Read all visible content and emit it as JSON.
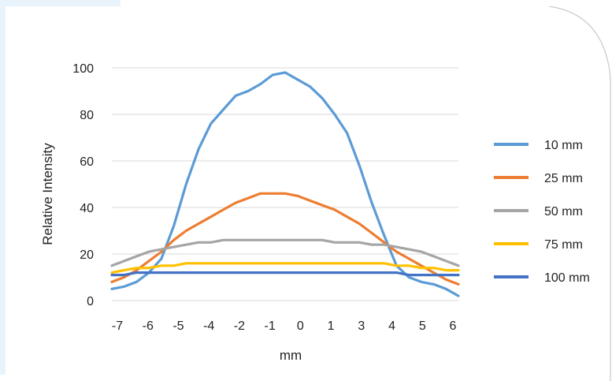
{
  "chart_data": {
    "type": "line",
    "title": "",
    "xlabel": "mm",
    "ylabel": "Relative Intensity",
    "ylim": [
      0,
      100
    ],
    "yticks": [
      "0",
      "20",
      "40",
      "60",
      "80",
      "100"
    ],
    "xtick_labels": [
      "-7",
      "-6",
      "-5",
      "-4",
      "-2",
      "-1",
      "0",
      "1",
      "3",
      "4",
      "5",
      "6"
    ],
    "xlim": [
      -7,
      7
    ],
    "grid": true,
    "legend_position": "right",
    "series": [
      {
        "name": "10 mm",
        "color": "#5b9bd5",
        "x": [
          -7,
          -6.5,
          -6,
          -5.5,
          -5,
          -4.5,
          -4,
          -3.5,
          -3,
          -2.5,
          -2,
          -1.5,
          -1,
          -0.5,
          0,
          0.5,
          1,
          1.5,
          2,
          2.5,
          3,
          3.5,
          4,
          4.5,
          5,
          5.5,
          6,
          6.5,
          7
        ],
        "values": [
          5,
          6,
          8,
          12,
          18,
          32,
          50,
          65,
          76,
          82,
          88,
          90,
          93,
          97,
          98,
          95,
          92,
          87,
          80,
          72,
          58,
          42,
          28,
          15,
          10,
          8,
          7,
          5,
          2
        ]
      },
      {
        "name": "25 mm",
        "color": "#ed7d31",
        "x": [
          -7,
          -6.5,
          -6,
          -5.5,
          -5,
          -4.5,
          -4,
          -3.5,
          -3,
          -2.5,
          -2,
          -1.5,
          -1,
          -0.5,
          0,
          0.5,
          1,
          1.5,
          2,
          2.5,
          3,
          3.5,
          4,
          4.5,
          5,
          5.5,
          6,
          6.5,
          7
        ],
        "values": [
          8,
          10,
          13,
          17,
          21,
          26,
          30,
          33,
          36,
          39,
          42,
          44,
          46,
          46,
          46,
          45,
          43,
          41,
          39,
          36,
          33,
          29,
          25,
          21,
          18,
          15,
          12,
          9,
          7
        ]
      },
      {
        "name": "50 mm",
        "color": "#a5a5a5",
        "x": [
          -7,
          -6.5,
          -6,
          -5.5,
          -5,
          -4.5,
          -4,
          -3.5,
          -3,
          -2.5,
          -2,
          -1.5,
          -1,
          -0.5,
          0,
          0.5,
          1,
          1.5,
          2,
          2.5,
          3,
          3.5,
          4,
          4.5,
          5,
          5.5,
          6,
          6.5,
          7
        ],
        "values": [
          15,
          17,
          19,
          21,
          22,
          23,
          24,
          25,
          25,
          26,
          26,
          26,
          26,
          26,
          26,
          26,
          26,
          26,
          25,
          25,
          25,
          24,
          24,
          23,
          22,
          21,
          19,
          17,
          15
        ]
      },
      {
        "name": "75 mm",
        "color": "#ffc000",
        "x": [
          -7,
          -6.5,
          -6,
          -5.5,
          -5,
          -4.5,
          -4,
          -3.5,
          -3,
          -2.5,
          -2,
          -1.5,
          -1,
          -0.5,
          0,
          0.5,
          1,
          1.5,
          2,
          2.5,
          3,
          3.5,
          4,
          4.5,
          5,
          5.5,
          6,
          6.5,
          7
        ],
        "values": [
          12,
          13,
          14,
          14,
          15,
          15,
          16,
          16,
          16,
          16,
          16,
          16,
          16,
          16,
          16,
          16,
          16,
          16,
          16,
          16,
          16,
          16,
          16,
          15,
          15,
          14,
          14,
          13,
          13
        ]
      },
      {
        "name": "100 mm",
        "color": "#4472c4",
        "x": [
          -7,
          -6.5,
          -6,
          -5.5,
          -5,
          -4.5,
          -4,
          -3.5,
          -3,
          -2.5,
          -2,
          -1.5,
          -1,
          -0.5,
          0,
          0.5,
          1,
          1.5,
          2,
          2.5,
          3,
          3.5,
          4,
          4.5,
          5,
          5.5,
          6,
          6.5,
          7
        ],
        "values": [
          11,
          11,
          12,
          12,
          12,
          12,
          12,
          12,
          12,
          12,
          12,
          12,
          12,
          12,
          12,
          12,
          12,
          12,
          12,
          12,
          12,
          12,
          12,
          12,
          11,
          11,
          11,
          11,
          11
        ]
      }
    ]
  }
}
